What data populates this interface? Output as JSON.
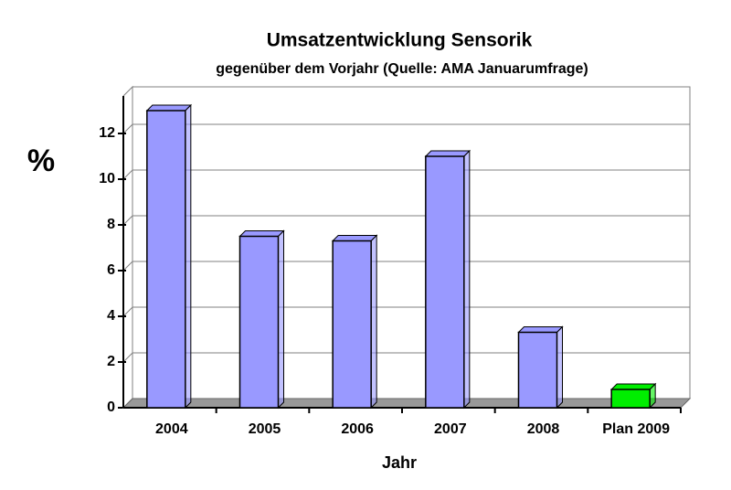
{
  "chart_data": {
    "type": "bar3d",
    "title": "Umsatzentwicklung Sensorik",
    "subtitle": "gegenüber dem Vorjahr (Quelle: AMA Januarumfrage)",
    "x_label": "Jahr",
    "y_label": "%",
    "categories": [
      "2004",
      "2005",
      "2006",
      "2007",
      "2008",
      "Plan 2009"
    ],
    "values": [
      13,
      7.5,
      7.3,
      11,
      3.3,
      0.8
    ],
    "colors": [
      "#9999ff",
      "#9999ff",
      "#9999ff",
      "#9999ff",
      "#9999ff",
      "#00ee00"
    ],
    "ylim": [
      0,
      14
    ],
    "yticks": [
      0,
      2,
      4,
      6,
      8,
      10,
      12
    ],
    "grid": true
  }
}
